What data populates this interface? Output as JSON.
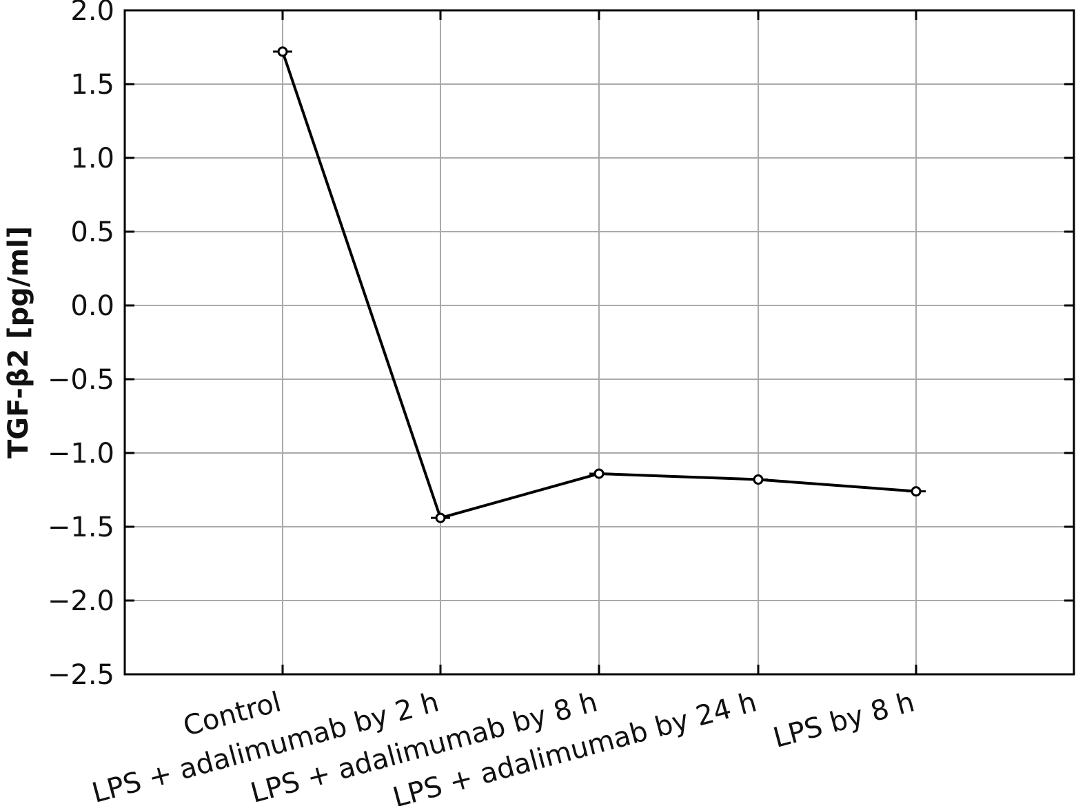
{
  "chart_data": {
    "type": "line",
    "title": "",
    "xlabel": "",
    "ylabel": "TGF-β2 [pg/ml]",
    "categories": [
      "Control",
      "LPS + adalimumab by 2 h",
      "LPS + adalimumab by 8 h",
      "LPS + adalimumab by 24 h",
      "LPS by 8 h"
    ],
    "series": [
      {
        "values": [
          1.72,
          -1.44,
          -1.14,
          -1.18,
          -1.26
        ]
      }
    ],
    "ylim": [
      -2.5,
      2.0
    ],
    "yticks": [
      2.0,
      1.5,
      1.0,
      0.5,
      0.0,
      -0.5,
      -1.0,
      -1.5,
      -2.0,
      -2.5
    ],
    "ytick_labels": [
      "2.0",
      "1.5",
      "1.0",
      "0.5",
      "0.0",
      "−0.5",
      "−1.0",
      "−1.5",
      "−2.0",
      "−2.5"
    ],
    "grid": true,
    "legend": "none",
    "colors": {
      "line": "#000000",
      "grid": "#aaaaaa",
      "axes": "#000000"
    }
  }
}
